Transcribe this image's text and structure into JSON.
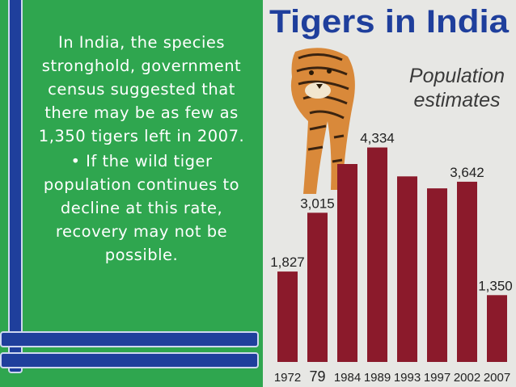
{
  "slide": {
    "paragraph": "In India, the species stronghold, government census suggested that there may be as few as 1,350 tigers left in 2007.",
    "bullet": "• If the wild tiger population continues to decline at this rate, recovery may not be possible."
  },
  "chart_data": {
    "type": "bar",
    "title": "Tigers in India",
    "subtitle": "Population estimates",
    "tick_labels": [
      "1972",
      "79",
      "1984",
      "1989",
      "1993",
      "1997",
      "2002",
      "2007"
    ],
    "categories": [
      "1972",
      "1979",
      "1984",
      "1989",
      "1993",
      "1997",
      "2002",
      "2007"
    ],
    "values": [
      1827,
      3015,
      4000,
      4334,
      3750,
      3508,
      3642,
      1350
    ],
    "data_labels": [
      "1,827",
      "3,015",
      "",
      "4,334",
      "",
      "",
      "3,642",
      "1,350"
    ],
    "ylim": [
      0,
      4800
    ],
    "grid": false,
    "legend": "none",
    "bar_color": "#8b1a2b",
    "title_color": "#1f3f9c"
  }
}
